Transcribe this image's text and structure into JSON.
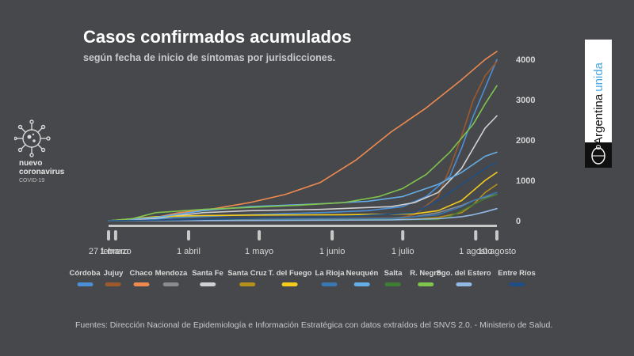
{
  "header": {
    "title": "Casos confirmados acumulados",
    "subtitle": "según fecha de inicio de síntomas por jurisdicciones."
  },
  "logo": {
    "line1": "nuevo",
    "line2": "coronavirus",
    "line3": "COVID-19"
  },
  "brand": {
    "word1": "Argentina",
    "word2": "unida"
  },
  "footer": {
    "source": "Fuentes: Dirección Nacional de Epidemiología e Información Estratégica con datos extraídos del SNVS 2.0. - Ministerio de Salud."
  },
  "chart_data": {
    "type": "line",
    "title": "Casos confirmados acumulados",
    "subtitle": "según fecha de inicio de síntomas por jurisdicciones.",
    "x_unit": "days since 27 febrero",
    "x_ticks": [
      {
        "label": "27 febrero",
        "day": 0
      },
      {
        "label": "1 marzo",
        "day": 3
      },
      {
        "label": "1 abril",
        "day": 34
      },
      {
        "label": "1 mayo",
        "day": 64
      },
      {
        "label": "1 junio",
        "day": 95
      },
      {
        "label": "1 julio",
        "day": 125
      },
      {
        "label": "1 agosto",
        "day": 156
      },
      {
        "label": "10 agosto",
        "day": 165
      }
    ],
    "ylim": [
      0,
      4200
    ],
    "y_ticks": [
      0,
      1000,
      2000,
      3000,
      4000
    ],
    "legend_position": "bottom",
    "series": [
      {
        "name": "Córdoba",
        "color": "#4b8fd6",
        "x": [
          0,
          10,
          30,
          60,
          90,
          110,
          125,
          135,
          145,
          150,
          155,
          160,
          165
        ],
        "y": [
          0,
          5,
          80,
          150,
          200,
          250,
          350,
          600,
          1100,
          1800,
          2600,
          3300,
          4000
        ]
      },
      {
        "name": "Jujuy",
        "color": "#9c5a2c",
        "x": [
          0,
          60,
          120,
          130,
          140,
          145,
          150,
          155,
          160,
          165
        ],
        "y": [
          0,
          5,
          30,
          150,
          600,
          1300,
          2100,
          3000,
          3600,
          3950
        ]
      },
      {
        "name": "Chaco",
        "color": "#ee8a50",
        "x": [
          0,
          10,
          20,
          30,
          45,
          60,
          75,
          90,
          105,
          120,
          135,
          150,
          160,
          165
        ],
        "y": [
          0,
          10,
          80,
          200,
          300,
          450,
          650,
          950,
          1500,
          2200,
          2800,
          3500,
          4000,
          4200
        ]
      },
      {
        "name": "Mendoza",
        "color": "#8a8b8e",
        "x": [
          0,
          60,
          120,
          130,
          140,
          150,
          155,
          160,
          165
        ],
        "y": [
          0,
          30,
          60,
          100,
          200,
          380,
          500,
          580,
          650
        ]
      },
      {
        "name": "Santa Fe",
        "color": "#d0d0d2",
        "x": [
          0,
          20,
          40,
          60,
          90,
          120,
          130,
          140,
          150,
          155,
          160,
          165
        ],
        "y": [
          0,
          60,
          200,
          250,
          280,
          350,
          450,
          700,
          1300,
          1800,
          2300,
          2600
        ]
      },
      {
        "name": "Santa Cruz",
        "color": "#b5901a",
        "x": [
          0,
          60,
          130,
          140,
          150,
          155,
          160,
          165
        ],
        "y": [
          0,
          20,
          40,
          80,
          200,
          400,
          700,
          900
        ]
      },
      {
        "name": "T. del Fuego",
        "color": "#f5cc1c",
        "x": [
          0,
          20,
          40,
          60,
          100,
          130,
          140,
          150,
          155,
          160,
          165
        ],
        "y": [
          0,
          100,
          130,
          140,
          150,
          170,
          250,
          500,
          750,
          1000,
          1200
        ]
      },
      {
        "name": "La Rioja",
        "color": "#3b77b0",
        "x": [
          0,
          60,
          120,
          140,
          150,
          155,
          160,
          165
        ],
        "y": [
          0,
          20,
          50,
          150,
          350,
          500,
          600,
          700
        ]
      },
      {
        "name": "Neuquén",
        "color": "#64aee8",
        "x": [
          0,
          20,
          40,
          60,
          90,
          110,
          125,
          140,
          150,
          160,
          165
        ],
        "y": [
          0,
          80,
          250,
          350,
          420,
          480,
          600,
          900,
          1200,
          1600,
          1700
        ]
      },
      {
        "name": "Salta",
        "color": "#3f7d34",
        "x": [
          0,
          60,
          140,
          145,
          150,
          155,
          160,
          165
        ],
        "y": [
          0,
          10,
          30,
          100,
          250,
          400,
          550,
          650
        ]
      },
      {
        "name": "R. Negro",
        "color": "#7fc44d",
        "x": [
          0,
          10,
          20,
          40,
          60,
          80,
          100,
          115,
          125,
          135,
          145,
          155,
          160,
          165
        ],
        "y": [
          0,
          50,
          200,
          280,
          330,
          380,
          450,
          600,
          800,
          1150,
          1700,
          2400,
          2900,
          3350
        ]
      },
      {
        "name": "Sgo. del Estero",
        "color": "#93b8e6",
        "x": [
          0,
          60,
          120,
          140,
          150,
          155,
          160,
          165
        ],
        "y": [
          0,
          5,
          20,
          50,
          100,
          150,
          220,
          300
        ]
      },
      {
        "name": "Entre Ríos",
        "color": "#1f4e85",
        "x": [
          0,
          30,
          60,
          100,
          130,
          140,
          150,
          160,
          165
        ],
        "y": [
          0,
          20,
          60,
          100,
          200,
          500,
          900,
          1300,
          1450
        ]
      }
    ]
  }
}
